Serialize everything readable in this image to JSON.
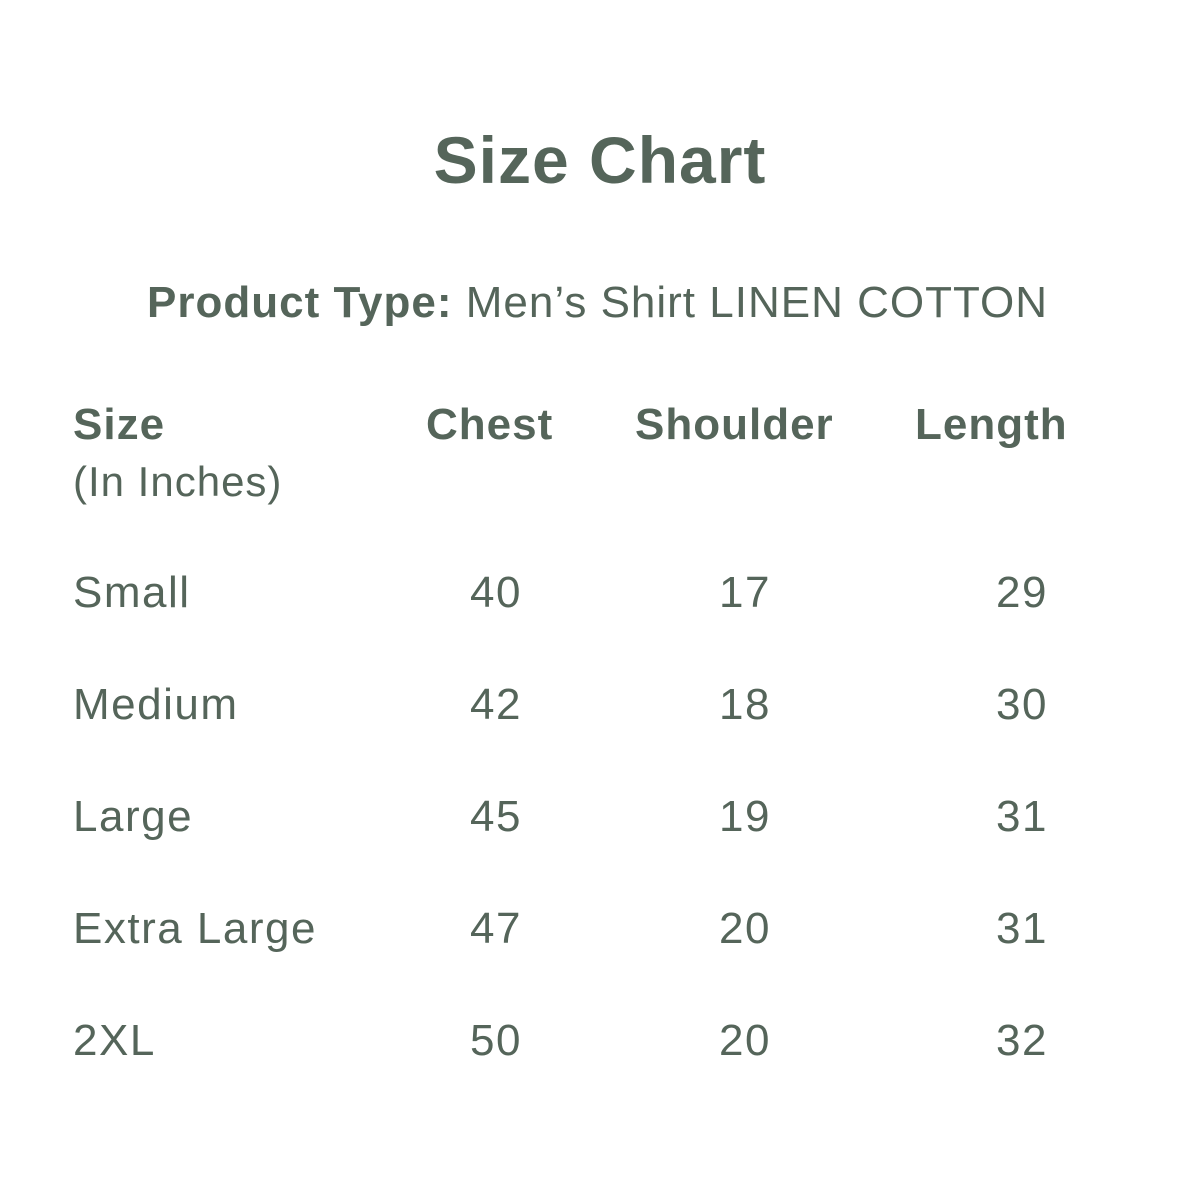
{
  "title": "Size Chart",
  "product_type": {
    "label": "Product Type:",
    "value": "Men’s Shirt LINEN COTTON"
  },
  "table": {
    "headers": [
      "Size",
      "Chest",
      "Shoulder",
      "Length"
    ],
    "size_unit_note": "(In Inches)",
    "rows": [
      [
        "Small",
        "40",
        "17",
        "29"
      ],
      [
        "Medium",
        "42",
        "18",
        "30"
      ],
      [
        "Large",
        "45",
        "19",
        "31"
      ],
      [
        "Extra Large",
        "47",
        "20",
        "31"
      ],
      [
        "2XL",
        "50",
        "20",
        "32"
      ]
    ]
  },
  "colors": {
    "text": "#55655a",
    "background": "#ffffff"
  }
}
